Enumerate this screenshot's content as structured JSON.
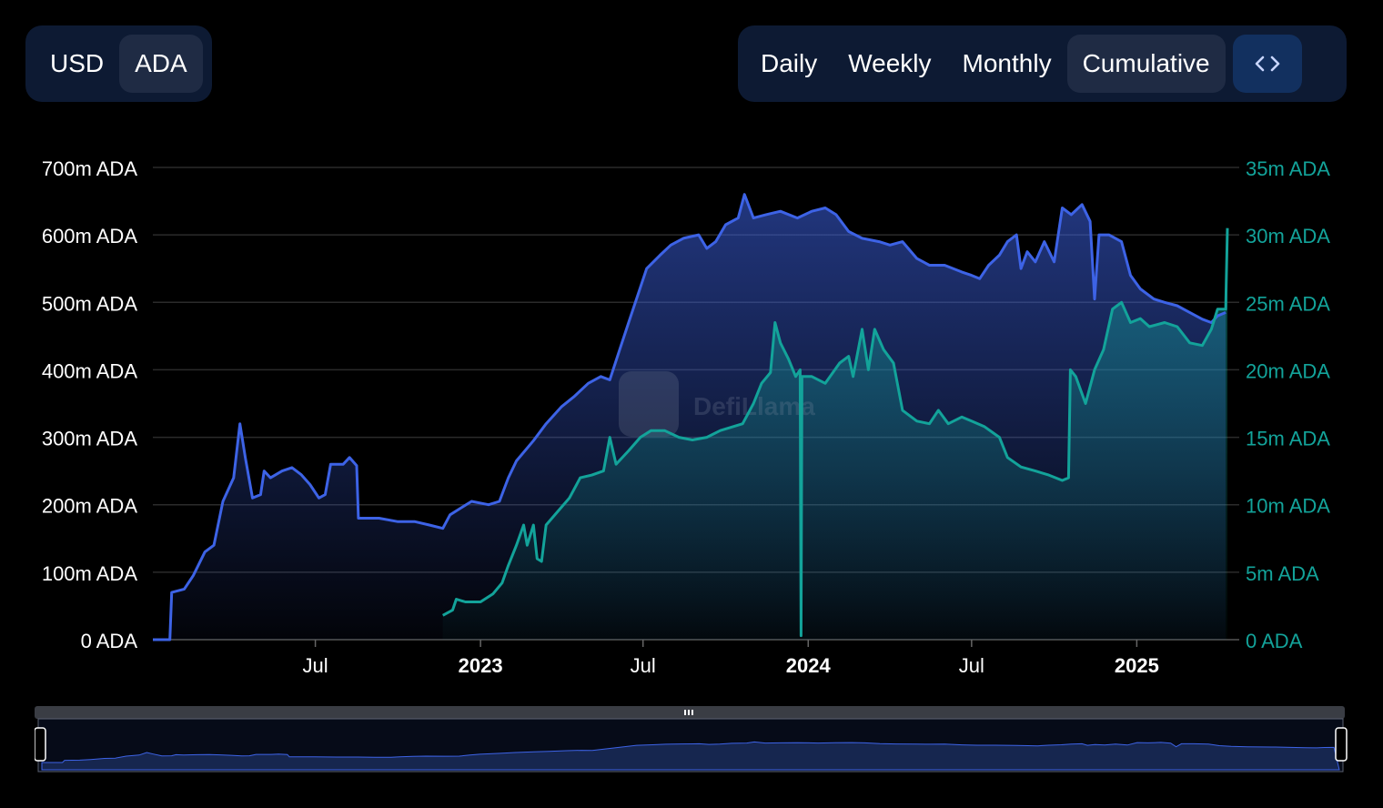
{
  "controls": {
    "currency": [
      {
        "label": "USD",
        "active": false
      },
      {
        "label": "ADA",
        "active": true
      }
    ],
    "periods": [
      {
        "label": "Daily",
        "active": false
      },
      {
        "label": "Weekly",
        "active": false
      },
      {
        "label": "Monthly",
        "active": false
      },
      {
        "label": "Cumulative",
        "active": true
      }
    ],
    "embed_icon": "code-brackets-icon"
  },
  "watermark": "DefiLlama",
  "colors": {
    "background": "#000000",
    "tvl_series": "#3d63e6",
    "volume_series": "#13a39a",
    "control_bg": "#0d1a33",
    "control_active": "#1f2b44",
    "embed_bg": "#12305f"
  },
  "chart_data": {
    "type": "line",
    "grid": true,
    "x_range": [
      "2022-01-01",
      "2025-04-15"
    ],
    "x_ticks": [
      {
        "label": "Jul",
        "date": "2022-07-01",
        "bold": false
      },
      {
        "label": "2023",
        "date": "2023-01-01",
        "bold": true
      },
      {
        "label": "Jul",
        "date": "2023-07-01",
        "bold": false
      },
      {
        "label": "2024",
        "date": "2024-01-01",
        "bold": true
      },
      {
        "label": "Jul",
        "date": "2024-07-01",
        "bold": false
      },
      {
        "label": "2025",
        "date": "2025-01-01",
        "bold": true
      }
    ],
    "y_left": {
      "ylim": [
        0,
        700
      ],
      "unit": "m ADA",
      "color": "#3d63e6",
      "ticks": [
        "0 ADA",
        "100m ADA",
        "200m ADA",
        "300m ADA",
        "400m ADA",
        "500m ADA",
        "600m ADA",
        "700m ADA"
      ]
    },
    "y_right": {
      "ylim": [
        0,
        35
      ],
      "unit": "m ADA",
      "color": "#13a39a",
      "ticks": [
        "0 ADA",
        "5m ADA",
        "10m ADA",
        "15m ADA",
        "20m ADA",
        "25m ADA",
        "30m ADA",
        "35m ADA"
      ]
    },
    "series": [
      {
        "axis": "left",
        "color": "#3d63e6",
        "area": true,
        "points": [
          [
            "2022-01-01",
            0
          ],
          [
            "2022-01-20",
            0
          ],
          [
            "2022-01-22",
            70
          ],
          [
            "2022-02-05",
            75
          ],
          [
            "2022-02-15",
            95
          ],
          [
            "2022-02-28",
            130
          ],
          [
            "2022-03-10",
            140
          ],
          [
            "2022-03-20",
            205
          ],
          [
            "2022-04-01",
            240
          ],
          [
            "2022-04-08",
            320
          ],
          [
            "2022-04-14",
            270
          ],
          [
            "2022-04-22",
            210
          ],
          [
            "2022-05-01",
            215
          ],
          [
            "2022-05-05",
            250
          ],
          [
            "2022-05-12",
            240
          ],
          [
            "2022-05-25",
            250
          ],
          [
            "2022-06-05",
            255
          ],
          [
            "2022-06-15",
            245
          ],
          [
            "2022-06-25",
            230
          ],
          [
            "2022-07-05",
            210
          ],
          [
            "2022-07-12",
            215
          ],
          [
            "2022-07-18",
            260
          ],
          [
            "2022-08-01",
            260
          ],
          [
            "2022-08-08",
            270
          ],
          [
            "2022-08-16",
            258
          ],
          [
            "2022-08-18",
            180
          ],
          [
            "2022-09-10",
            180
          ],
          [
            "2022-10-01",
            175
          ],
          [
            "2022-10-20",
            175
          ],
          [
            "2022-11-05",
            170
          ],
          [
            "2022-11-20",
            165
          ],
          [
            "2022-11-28",
            185
          ],
          [
            "2022-12-10",
            195
          ],
          [
            "2022-12-22",
            205
          ],
          [
            "2023-01-10",
            200
          ],
          [
            "2023-01-22",
            205
          ],
          [
            "2023-02-01",
            240
          ],
          [
            "2023-02-10",
            265
          ],
          [
            "2023-03-01",
            295
          ],
          [
            "2023-03-15",
            320
          ],
          [
            "2023-04-01",
            345
          ],
          [
            "2023-04-15",
            360
          ],
          [
            "2023-05-01",
            380
          ],
          [
            "2023-05-15",
            390
          ],
          [
            "2023-05-25",
            385
          ],
          [
            "2023-06-05",
            430
          ],
          [
            "2023-06-15",
            470
          ],
          [
            "2023-06-25",
            510
          ],
          [
            "2023-07-05",
            550
          ],
          [
            "2023-07-20",
            570
          ],
          [
            "2023-08-01",
            585
          ],
          [
            "2023-08-15",
            595
          ],
          [
            "2023-09-01",
            600
          ],
          [
            "2023-09-10",
            580
          ],
          [
            "2023-09-20",
            590
          ],
          [
            "2023-10-01",
            615
          ],
          [
            "2023-10-15",
            625
          ],
          [
            "2023-10-22",
            660
          ],
          [
            "2023-11-01",
            625
          ],
          [
            "2023-11-15",
            630
          ],
          [
            "2023-12-01",
            635
          ],
          [
            "2023-12-20",
            625
          ],
          [
            "2024-01-05",
            635
          ],
          [
            "2024-01-20",
            640
          ],
          [
            "2024-02-01",
            630
          ],
          [
            "2024-02-15",
            605
          ],
          [
            "2024-03-01",
            595
          ],
          [
            "2024-03-20",
            590
          ],
          [
            "2024-04-01",
            585
          ],
          [
            "2024-04-15",
            590
          ],
          [
            "2024-05-01",
            565
          ],
          [
            "2024-05-15",
            555
          ],
          [
            "2024-06-01",
            555
          ],
          [
            "2024-06-20",
            545
          ],
          [
            "2024-07-01",
            540
          ],
          [
            "2024-07-10",
            535
          ],
          [
            "2024-07-20",
            555
          ],
          [
            "2024-08-01",
            570
          ],
          [
            "2024-08-10",
            590
          ],
          [
            "2024-08-20",
            600
          ],
          [
            "2024-08-25",
            550
          ],
          [
            "2024-09-01",
            575
          ],
          [
            "2024-09-10",
            560
          ],
          [
            "2024-09-20",
            590
          ],
          [
            "2024-10-01",
            560
          ],
          [
            "2024-10-10",
            640
          ],
          [
            "2024-10-20",
            630
          ],
          [
            "2024-11-01",
            645
          ],
          [
            "2024-11-10",
            620
          ],
          [
            "2024-11-15",
            505
          ],
          [
            "2024-11-20",
            600
          ],
          [
            "2024-12-01",
            600
          ],
          [
            "2024-12-15",
            590
          ],
          [
            "2024-12-25",
            540
          ],
          [
            "2025-01-05",
            520
          ],
          [
            "2025-01-20",
            505
          ],
          [
            "2025-02-01",
            500
          ],
          [
            "2025-02-15",
            495
          ],
          [
            "2025-03-01",
            485
          ],
          [
            "2025-03-15",
            475
          ],
          [
            "2025-03-25",
            470
          ],
          [
            "2025-04-01",
            480
          ],
          [
            "2025-04-10",
            485
          ]
        ]
      },
      {
        "axis": "right",
        "color": "#13a39a",
        "area": true,
        "points": [
          [
            "2022-11-20",
            1.8
          ],
          [
            "2022-12-01",
            2.2
          ],
          [
            "2022-12-05",
            3.0
          ],
          [
            "2022-12-15",
            2.8
          ],
          [
            "2023-01-01",
            2.8
          ],
          [
            "2023-01-15",
            3.4
          ],
          [
            "2023-01-25",
            4.2
          ],
          [
            "2023-02-01",
            5.5
          ],
          [
            "2023-02-10",
            7.0
          ],
          [
            "2023-02-18",
            8.5
          ],
          [
            "2023-02-22",
            7.0
          ],
          [
            "2023-03-01",
            8.5
          ],
          [
            "2023-03-05",
            6.0
          ],
          [
            "2023-03-10",
            5.8
          ],
          [
            "2023-03-15",
            8.5
          ],
          [
            "2023-03-28",
            9.5
          ],
          [
            "2023-04-10",
            10.5
          ],
          [
            "2023-04-22",
            12.0
          ],
          [
            "2023-05-05",
            12.2
          ],
          [
            "2023-05-18",
            12.5
          ],
          [
            "2023-05-25",
            15.0
          ],
          [
            "2023-06-01",
            13.0
          ],
          [
            "2023-06-15",
            14.0
          ],
          [
            "2023-06-28",
            15.0
          ],
          [
            "2023-07-10",
            15.5
          ],
          [
            "2023-07-25",
            15.5
          ],
          [
            "2023-08-10",
            15.0
          ],
          [
            "2023-08-25",
            14.8
          ],
          [
            "2023-09-10",
            15.0
          ],
          [
            "2023-09-25",
            15.5
          ],
          [
            "2023-10-10",
            15.8
          ],
          [
            "2023-10-20",
            16.0
          ],
          [
            "2023-11-01",
            17.5
          ],
          [
            "2023-11-10",
            19.0
          ],
          [
            "2023-11-20",
            19.8
          ],
          [
            "2023-11-25",
            23.5
          ],
          [
            "2023-12-01",
            22.0
          ],
          [
            "2023-12-10",
            20.8
          ],
          [
            "2023-12-18",
            19.5
          ],
          [
            "2023-12-23",
            20.0
          ],
          [
            "2023-12-24",
            0.3
          ],
          [
            "2023-12-25",
            19.5
          ],
          [
            "2024-01-05",
            19.5
          ],
          [
            "2024-01-20",
            19.0
          ],
          [
            "2024-02-05",
            20.5
          ],
          [
            "2024-02-15",
            21.0
          ],
          [
            "2024-02-20",
            19.5
          ],
          [
            "2024-03-01",
            23.0
          ],
          [
            "2024-03-08",
            20.0
          ],
          [
            "2024-03-15",
            23.0
          ],
          [
            "2024-03-25",
            21.5
          ],
          [
            "2024-04-05",
            20.5
          ],
          [
            "2024-04-15",
            17.0
          ],
          [
            "2024-05-01",
            16.2
          ],
          [
            "2024-05-15",
            16.0
          ],
          [
            "2024-05-25",
            17.0
          ],
          [
            "2024-06-05",
            16.0
          ],
          [
            "2024-06-20",
            16.5
          ],
          [
            "2024-07-01",
            16.2
          ],
          [
            "2024-07-15",
            15.8
          ],
          [
            "2024-08-01",
            15.0
          ],
          [
            "2024-08-10",
            13.5
          ],
          [
            "2024-08-25",
            12.8
          ],
          [
            "2024-09-10",
            12.5
          ],
          [
            "2024-09-25",
            12.2
          ],
          [
            "2024-10-10",
            11.8
          ],
          [
            "2024-10-17",
            12.0
          ],
          [
            "2024-10-19",
            20.0
          ],
          [
            "2024-10-25",
            19.5
          ],
          [
            "2024-11-05",
            17.5
          ],
          [
            "2024-11-15",
            20.0
          ],
          [
            "2024-11-25",
            21.5
          ],
          [
            "2024-12-05",
            24.5
          ],
          [
            "2024-12-15",
            25.0
          ],
          [
            "2024-12-25",
            23.5
          ],
          [
            "2025-01-05",
            23.8
          ],
          [
            "2025-01-15",
            23.2
          ],
          [
            "2025-02-01",
            23.5
          ],
          [
            "2025-02-15",
            23.2
          ],
          [
            "2025-03-01",
            22.0
          ],
          [
            "2025-03-15",
            21.8
          ],
          [
            "2025-03-25",
            23.0
          ],
          [
            "2025-04-01",
            24.5
          ],
          [
            "2025-04-10",
            24.5
          ],
          [
            "2025-04-12",
            30.5
          ]
        ]
      }
    ]
  }
}
